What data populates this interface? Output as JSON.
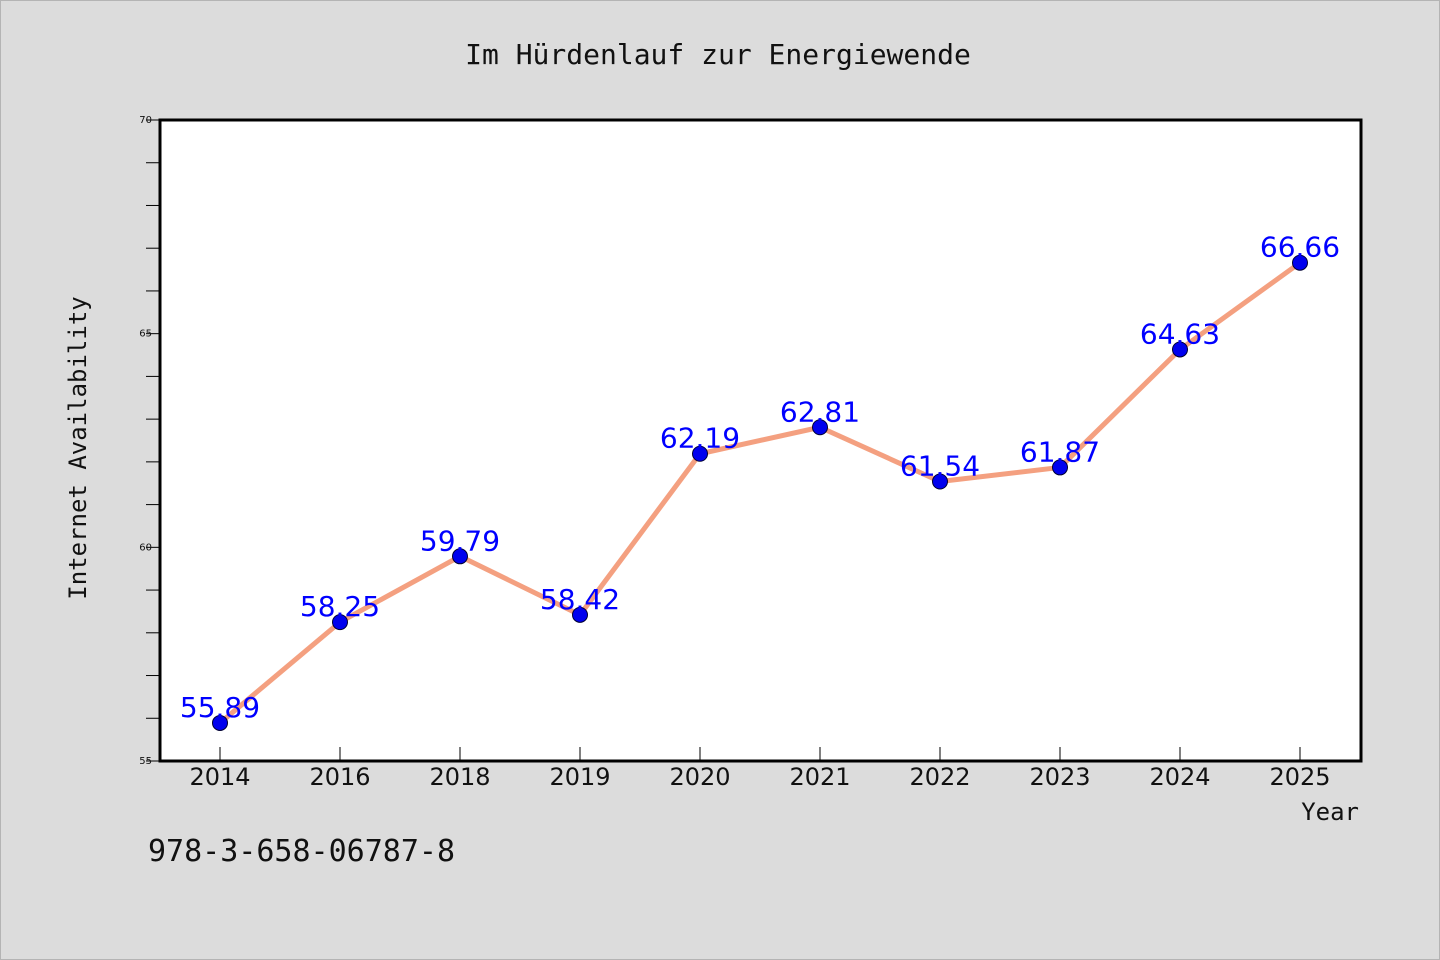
{
  "chart_data": {
    "type": "line",
    "title": "Im Hürdenlauf zur Energiewende",
    "xlabel": "Year",
    "ylabel": "Internet Availability",
    "categories": [
      "2014",
      "2016",
      "2018",
      "2019",
      "2020",
      "2021",
      "2022",
      "2023",
      "2024",
      "2025"
    ],
    "values": [
      55.89,
      58.25,
      59.79,
      58.42,
      62.19,
      62.81,
      61.54,
      61.87,
      64.63,
      66.66
    ],
    "data_labels": [
      "55.89",
      "58.25",
      "59.79",
      "58.42",
      "62.19",
      "62.81",
      "61.54",
      "61.87",
      "64.63",
      "66.66"
    ],
    "ylim": [
      55,
      70
    ],
    "y_ticks": [
      55,
      60,
      65,
      70
    ],
    "grid": false,
    "line_color": "#f4a080",
    "marker_color": "#0000ee",
    "label_color": "#0000ff"
  },
  "footer": {
    "isbn": "978-3-658-06787-8"
  }
}
